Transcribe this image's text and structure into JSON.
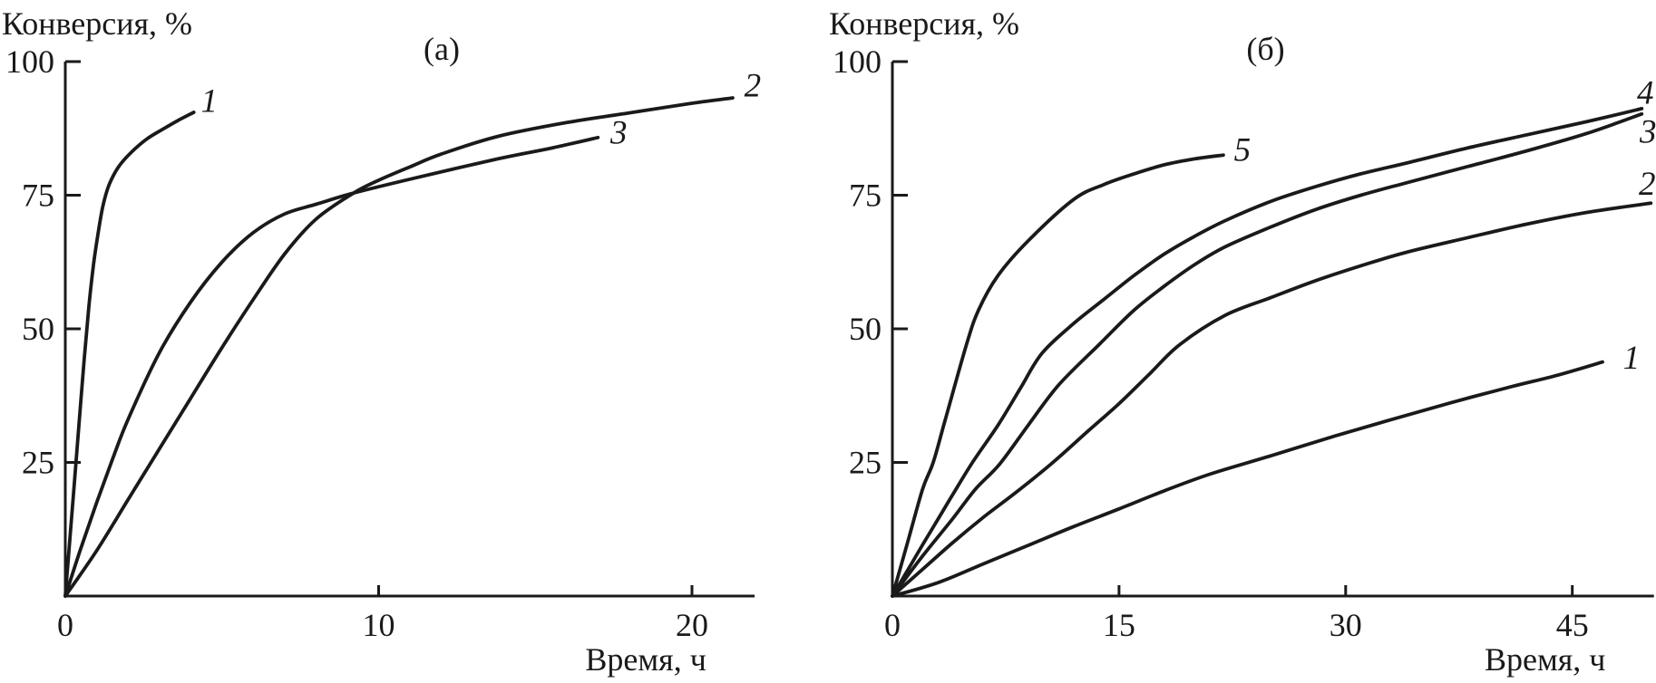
{
  "figure": {
    "background": "#ffffff",
    "ink": "#1a1a1a"
  },
  "chart_data": [
    {
      "type": "line",
      "panel_label": "(а)",
      "ylabel": "Конверсия, %",
      "xlabel": "Время, ч",
      "xlim": [
        0,
        22
      ],
      "ylim": [
        0,
        100
      ],
      "x_ticks": [
        0,
        10,
        20
      ],
      "y_ticks": [
        25,
        50,
        75,
        100
      ],
      "grid": false,
      "legend_style": "numbered-curve-ends",
      "series": [
        {
          "name": "1",
          "label_offset": [
            17,
            -12
          ],
          "points": [
            [
              0,
              0
            ],
            [
              0.15,
              11
            ],
            [
              0.3,
              22
            ],
            [
              0.45,
              33
            ],
            [
              0.6,
              44
            ],
            [
              0.75,
              54
            ],
            [
              0.9,
              62
            ],
            [
              1.05,
              68
            ],
            [
              1.2,
              73
            ],
            [
              1.4,
              77
            ],
            [
              1.7,
              80.3
            ],
            [
              2.1,
              83
            ],
            [
              2.6,
              85.5
            ],
            [
              3.1,
              87.3
            ],
            [
              3.6,
              89
            ],
            [
              4.1,
              90.5
            ]
          ]
        },
        {
          "name": "2",
          "label_offset": [
            22,
            -13
          ],
          "points": [
            [
              0,
              0
            ],
            [
              1,
              8.5
            ],
            [
              2,
              18
            ],
            [
              3,
              27.5
            ],
            [
              4,
              37
            ],
            [
              5,
              46.5
            ],
            [
              6,
              55.5
            ],
            [
              7,
              64
            ],
            [
              8,
              70.5
            ],
            [
              9.2,
              75.4
            ],
            [
              10,
              77.8
            ],
            [
              11,
              80.3
            ],
            [
              12,
              82.7
            ],
            [
              13.8,
              86
            ],
            [
              16,
              88.6
            ],
            [
              18,
              90.4
            ],
            [
              20,
              92.2
            ],
            [
              21.3,
              93.2
            ]
          ]
        },
        {
          "name": "3",
          "label_offset": [
            23,
            -5
          ],
          "points": [
            [
              0,
              0
            ],
            [
              0.5,
              9
            ],
            [
              1,
              17.5
            ],
            [
              1.5,
              25.5
            ],
            [
              2,
              33
            ],
            [
              3,
              45.5
            ],
            [
              4,
              55
            ],
            [
              5,
              62.5
            ],
            [
              6,
              68
            ],
            [
              7,
              71.5
            ],
            [
              8,
              73.3
            ],
            [
              9.2,
              75.4
            ],
            [
              11,
              78
            ],
            [
              13.8,
              81.8
            ],
            [
              15.5,
              83.8
            ],
            [
              17,
              85.8
            ]
          ]
        }
      ]
    },
    {
      "type": "line",
      "panel_label": "(б)",
      "ylabel": "Конверсия, %",
      "xlabel": "Время, ч",
      "xlim": [
        0,
        50.4
      ],
      "ylim": [
        0,
        100
      ],
      "x_ticks": [
        0,
        15,
        30,
        45
      ],
      "y_ticks": [
        25,
        50,
        75,
        100
      ],
      "grid": false,
      "legend_style": "numbered-curve-ends",
      "series": [
        {
          "name": "1",
          "label_offset": [
            32,
            -4
          ],
          "points": [
            [
              0,
              0
            ],
            [
              3,
              2.5
            ],
            [
              6,
              6
            ],
            [
              9,
              9.5
            ],
            [
              12,
              13
            ],
            [
              15,
              16.3
            ],
            [
              18,
              19.7
            ],
            [
              21,
              22.8
            ],
            [
              25,
              26.2
            ],
            [
              29,
              29.7
            ],
            [
              33,
              33
            ],
            [
              37,
              36.2
            ],
            [
              41,
              39.2
            ],
            [
              44,
              41.3
            ],
            [
              47,
              43.8
            ]
          ]
        },
        {
          "name": "2",
          "label_offset": [
            -4,
            -21
          ],
          "points": [
            [
              0,
              0
            ],
            [
              2,
              5
            ],
            [
              4,
              10
            ],
            [
              6,
              14.7
            ],
            [
              8,
              19
            ],
            [
              10.5,
              24.7
            ],
            [
              13,
              31
            ],
            [
              15,
              36
            ],
            [
              17,
              41.5
            ],
            [
              19,
              47
            ],
            [
              22,
              52.5
            ],
            [
              25,
              55.8
            ],
            [
              28,
              59
            ],
            [
              31,
              61.8
            ],
            [
              34,
              64.3
            ],
            [
              38,
              67
            ],
            [
              42,
              69.6
            ],
            [
              46,
              71.8
            ],
            [
              50.2,
              73.5
            ]
          ]
        },
        {
          "name": "3",
          "label_offset": [
            7,
            20
          ],
          "points": [
            [
              0,
              0
            ],
            [
              2,
              7.5
            ],
            [
              4,
              14.5
            ],
            [
              5.5,
              20
            ],
            [
              7.1,
              24.7
            ],
            [
              9,
              32
            ],
            [
              11,
              39.5
            ],
            [
              13.7,
              47.1
            ],
            [
              16,
              53.5
            ],
            [
              18,
              58
            ],
            [
              20,
              62
            ],
            [
              22,
              65.3
            ],
            [
              25,
              69
            ],
            [
              28,
              72.3
            ],
            [
              31,
              75
            ],
            [
              34,
              77.3
            ],
            [
              38,
              80.3
            ],
            [
              42,
              83.3
            ],
            [
              46,
              86.6
            ],
            [
              49.6,
              90.2
            ]
          ]
        },
        {
          "name": "4",
          "label_offset": [
            4,
            -17
          ],
          "points": [
            [
              0,
              0
            ],
            [
              1,
              4.8
            ],
            [
              2,
              9.6
            ],
            [
              3,
              14.3
            ],
            [
              4,
              19
            ],
            [
              5.3,
              25
            ],
            [
              7,
              32
            ],
            [
              8.5,
              39
            ],
            [
              9.9,
              45.4
            ],
            [
              12,
              51
            ],
            [
              14,
              55.5
            ],
            [
              16,
              60
            ],
            [
              18,
              64
            ],
            [
              20,
              67.3
            ],
            [
              22,
              70.2
            ],
            [
              25,
              73.8
            ],
            [
              28,
              76.6
            ],
            [
              31,
              79
            ],
            [
              34,
              81
            ],
            [
              38,
              83.8
            ],
            [
              42,
              86.3
            ],
            [
              46,
              88.8
            ],
            [
              49.6,
              91.2
            ]
          ]
        },
        {
          "name": "5",
          "label_offset": [
            21,
            -5
          ],
          "points": [
            [
              0,
              0
            ],
            [
              1,
              10
            ],
            [
              2,
              20
            ],
            [
              2.7,
              25
            ],
            [
              3.5,
              33
            ],
            [
              4.9,
              47
            ],
            [
              5.7,
              53.5
            ],
            [
              7,
              60
            ],
            [
              9,
              66.5
            ],
            [
              12,
              74.2
            ],
            [
              14,
              77
            ],
            [
              16,
              79
            ],
            [
              18,
              80.7
            ],
            [
              20,
              81.8
            ],
            [
              21.9,
              82.5
            ]
          ]
        }
      ]
    }
  ]
}
